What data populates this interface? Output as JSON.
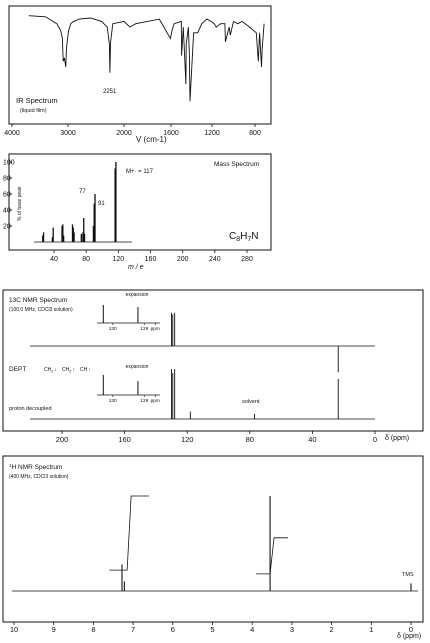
{
  "chart_data": [
    {
      "type": "line",
      "title": "IR Spectrum",
      "subtitle": "(liquid film)",
      "xlabel": "V (cm-1)",
      "x_ticks": [
        "4000",
        "3000",
        "2000",
        "1600",
        "1200",
        "800"
      ],
      "xlim": [
        4000,
        600
      ],
      "annotation": "2251",
      "series": [
        {
          "x": [
            3700,
            3400,
            3200,
            3130,
            3100,
            3085,
            3065,
            3040,
            3030,
            3020,
            2990,
            2950,
            2900,
            2800,
            2600,
            2400,
            2300,
            2260,
            2251,
            2240,
            2200,
            2000,
            1950,
            1900,
            1800,
            1700,
            1605,
            1590,
            1570,
            1500,
            1497,
            1480,
            1455,
            1452,
            1430,
            1420,
            1415,
            1380,
            1340,
            1300,
            1250,
            1210,
            1180,
            1160,
            1120,
            1080,
            1075,
            1040,
            1030,
            1000,
            960,
            920,
            850,
            780,
            750,
            730,
            700,
            690,
            660
          ],
          "y": [
            95,
            94,
            88,
            82,
            75,
            55,
            58,
            50,
            63,
            70,
            82,
            88,
            90,
            92,
            93,
            90,
            85,
            70,
            45,
            72,
            88,
            90,
            85,
            88,
            90,
            92,
            75,
            82,
            88,
            90,
            60,
            85,
            35,
            70,
            85,
            60,
            20,
            80,
            80,
            88,
            92,
            90,
            88,
            85,
            88,
            88,
            72,
            85,
            78,
            90,
            88,
            90,
            85,
            80,
            55,
            80,
            50,
            65,
            88
          ]
        }
      ]
    },
    {
      "type": "bar",
      "title": "Mass Spectrum",
      "ylabel": "% of base peak",
      "xlabel": "m / e",
      "formula": "C8H7N",
      "annotations": [
        "M+· = 117",
        "77",
        "91"
      ],
      "x_ticks": [
        "40",
        "80",
        "120",
        "160",
        "200",
        "240",
        "280"
      ],
      "y_ticks": [
        "100",
        "80",
        "60",
        "40",
        "20"
      ],
      "xlim": [
        20,
        300
      ],
      "ylim": [
        0,
        100
      ],
      "x": [
        26,
        27,
        38,
        39,
        50,
        51,
        52,
        63,
        64,
        65,
        74,
        76,
        77,
        78,
        89,
        90,
        91,
        116,
        117
      ],
      "values": [
        8,
        12,
        6,
        18,
        20,
        22,
        8,
        22,
        18,
        12,
        10,
        12,
        30,
        10,
        20,
        48,
        60,
        92,
        100
      ]
    },
    {
      "type": "bar",
      "title": "13C NMR Spectrum",
      "subtitle": "(100.0 MHz, CDCl3 solution)",
      "rows": [
        "DEPT",
        "proton decoupled"
      ],
      "dept_labels": [
        "CH2",
        "CH2",
        "CH"
      ],
      "expansion_label": "expansion",
      "expansion_ticks": [
        "130",
        "129",
        "ppm"
      ],
      "solvent_label": "solvent",
      "xlabel": "δ (ppm)",
      "x_ticks": [
        "200",
        "160",
        "120",
        "80",
        "40",
        "0"
      ],
      "xlim": [
        220,
        0
      ],
      "peaks_ppm": [
        130.0,
        129.2,
        128.0,
        118.0,
        77.0,
        23.5
      ],
      "proton_decoupled_heights": [
        100,
        92,
        100,
        15,
        10,
        80
      ],
      "dept_heights": [
        95,
        90,
        95,
        0,
        0,
        -75
      ]
    },
    {
      "type": "line",
      "title": "1H NMR Spectrum",
      "subtitle": "(400 MHz, CDCl3 solution)",
      "xlabel": "δ (ppm)",
      "x_ticks": [
        "10",
        "9",
        "8",
        "7",
        "6",
        "5",
        "4",
        "3",
        "2",
        "1",
        "0"
      ],
      "xlim": [
        10,
        0
      ],
      "reference_label": "TMS",
      "peaks_ppm": [
        7.28,
        7.22,
        3.55,
        0.0
      ],
      "peak_heights": [
        28,
        10,
        100,
        8
      ],
      "integrals": [
        {
          "from": 7.6,
          "to": 6.6,
          "low": 22,
          "high": 100
        },
        {
          "from": 3.9,
          "to": 3.1,
          "low": 18,
          "high": 56
        }
      ]
    }
  ]
}
